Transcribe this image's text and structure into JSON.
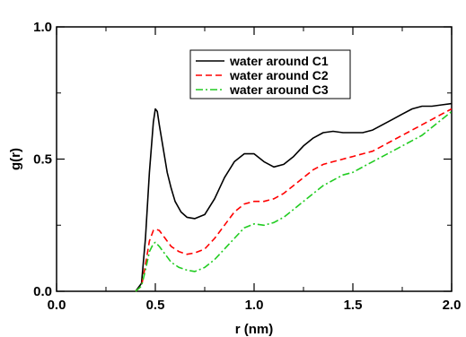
{
  "chart_data": {
    "type": "line",
    "title": "",
    "xlabel": "r (nm)",
    "ylabel": "g(r)",
    "xlim": [
      0.0,
      2.0
    ],
    "ylim": [
      0.0,
      1.0
    ],
    "x_ticks": [
      0.0,
      0.5,
      1.0,
      1.5,
      2.0
    ],
    "x_tick_labels": [
      "0.0",
      "0.5",
      "1.0",
      "1.5",
      "2.0"
    ],
    "y_ticks": [
      0.0,
      0.5,
      1.0
    ],
    "y_tick_labels": [
      "0.0",
      "0.5",
      "1.0"
    ],
    "grid": false,
    "legend_position": "top-center",
    "series": [
      {
        "name": "water around C1",
        "color": "#000000",
        "dash": "solid",
        "x": [
          0.4,
          0.43,
          0.45,
          0.47,
          0.49,
          0.5,
          0.51,
          0.52,
          0.54,
          0.56,
          0.58,
          0.6,
          0.63,
          0.66,
          0.7,
          0.75,
          0.8,
          0.85,
          0.9,
          0.95,
          1.0,
          1.05,
          1.1,
          1.15,
          1.2,
          1.25,
          1.3,
          1.35,
          1.4,
          1.45,
          1.5,
          1.55,
          1.6,
          1.65,
          1.7,
          1.75,
          1.8,
          1.85,
          1.9,
          1.95,
          2.0
        ],
        "y": [
          0.0,
          0.03,
          0.2,
          0.45,
          0.64,
          0.69,
          0.68,
          0.63,
          0.54,
          0.45,
          0.39,
          0.34,
          0.3,
          0.28,
          0.275,
          0.29,
          0.35,
          0.43,
          0.49,
          0.52,
          0.52,
          0.49,
          0.47,
          0.48,
          0.51,
          0.55,
          0.58,
          0.6,
          0.605,
          0.6,
          0.6,
          0.6,
          0.61,
          0.63,
          0.65,
          0.67,
          0.69,
          0.7,
          0.7,
          0.705,
          0.71
        ]
      },
      {
        "name": "water around C2",
        "color": "#ff0000",
        "dash": "dashed",
        "x": [
          0.4,
          0.43,
          0.45,
          0.47,
          0.49,
          0.5,
          0.52,
          0.55,
          0.58,
          0.62,
          0.66,
          0.7,
          0.75,
          0.8,
          0.85,
          0.9,
          0.95,
          1.0,
          1.05,
          1.1,
          1.15,
          1.2,
          1.25,
          1.3,
          1.35,
          1.4,
          1.45,
          1.5,
          1.55,
          1.6,
          1.65,
          1.7,
          1.75,
          1.8,
          1.85,
          1.9,
          1.95,
          2.0
        ],
        "y": [
          0.0,
          0.02,
          0.1,
          0.19,
          0.23,
          0.235,
          0.23,
          0.2,
          0.17,
          0.15,
          0.14,
          0.145,
          0.16,
          0.2,
          0.25,
          0.3,
          0.33,
          0.34,
          0.34,
          0.35,
          0.37,
          0.4,
          0.43,
          0.46,
          0.48,
          0.49,
          0.5,
          0.51,
          0.52,
          0.53,
          0.55,
          0.57,
          0.59,
          0.61,
          0.63,
          0.65,
          0.67,
          0.69
        ]
      },
      {
        "name": "water around C3",
        "color": "#22cc22",
        "dash": "dashdot",
        "x": [
          0.4,
          0.43,
          0.45,
          0.47,
          0.49,
          0.5,
          0.52,
          0.55,
          0.58,
          0.62,
          0.66,
          0.7,
          0.75,
          0.8,
          0.85,
          0.9,
          0.95,
          1.0,
          1.05,
          1.1,
          1.15,
          1.2,
          1.25,
          1.3,
          1.35,
          1.4,
          1.45,
          1.5,
          1.55,
          1.6,
          1.65,
          1.7,
          1.75,
          1.8,
          1.85,
          1.9,
          1.95,
          2.0
        ],
        "y": [
          0.0,
          0.02,
          0.08,
          0.15,
          0.18,
          0.185,
          0.17,
          0.14,
          0.11,
          0.09,
          0.08,
          0.075,
          0.09,
          0.12,
          0.16,
          0.2,
          0.24,
          0.255,
          0.25,
          0.26,
          0.28,
          0.31,
          0.34,
          0.37,
          0.4,
          0.42,
          0.44,
          0.45,
          0.47,
          0.49,
          0.51,
          0.53,
          0.55,
          0.57,
          0.59,
          0.62,
          0.65,
          0.68
        ]
      }
    ]
  }
}
